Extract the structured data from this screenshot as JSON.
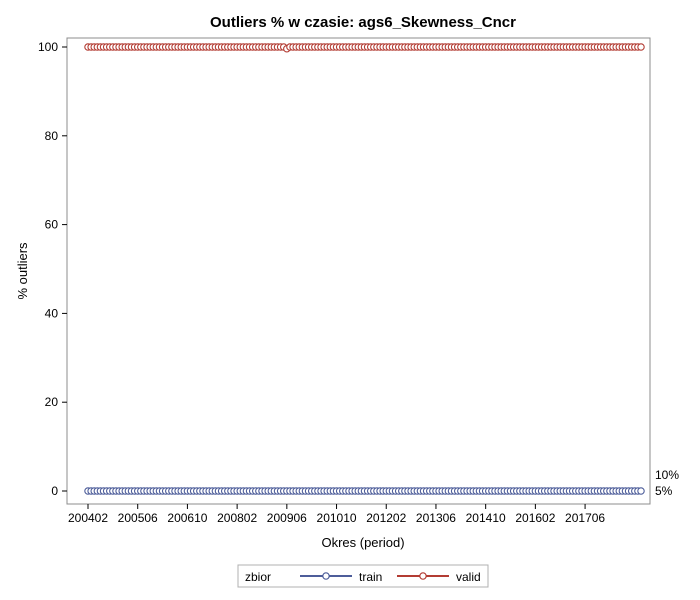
{
  "chart_data": {
    "type": "line",
    "title": "Outliers % w czasie: ags6_Skewness_Cncr",
    "xlabel": "Okres (period)",
    "ylabel": "% outliers",
    "ylim": [
      0,
      100
    ],
    "yticks": [
      0,
      20,
      40,
      60,
      80,
      100
    ],
    "x_tick_labels": [
      "200402",
      "200506",
      "200610",
      "200802",
      "200906",
      "201010",
      "201202",
      "201306",
      "201410",
      "201602",
      "201706"
    ],
    "x_start_period": "200402",
    "x_end_period": "201812",
    "grid": false,
    "legend": {
      "placement": "bottom",
      "title": "zbior",
      "entries": [
        "train",
        "valid"
      ]
    },
    "reference_lines": [
      {
        "value": 10,
        "label": "10%"
      },
      {
        "value": 5,
        "label": "5%"
      }
    ],
    "series": [
      {
        "name": "train",
        "color": "#4d5d9a",
        "constant_value": 0
      },
      {
        "name": "valid",
        "color": "#b33c33",
        "constant_value": 100,
        "dips": [
          {
            "period": "200906",
            "value": 99.6
          }
        ]
      }
    ]
  }
}
